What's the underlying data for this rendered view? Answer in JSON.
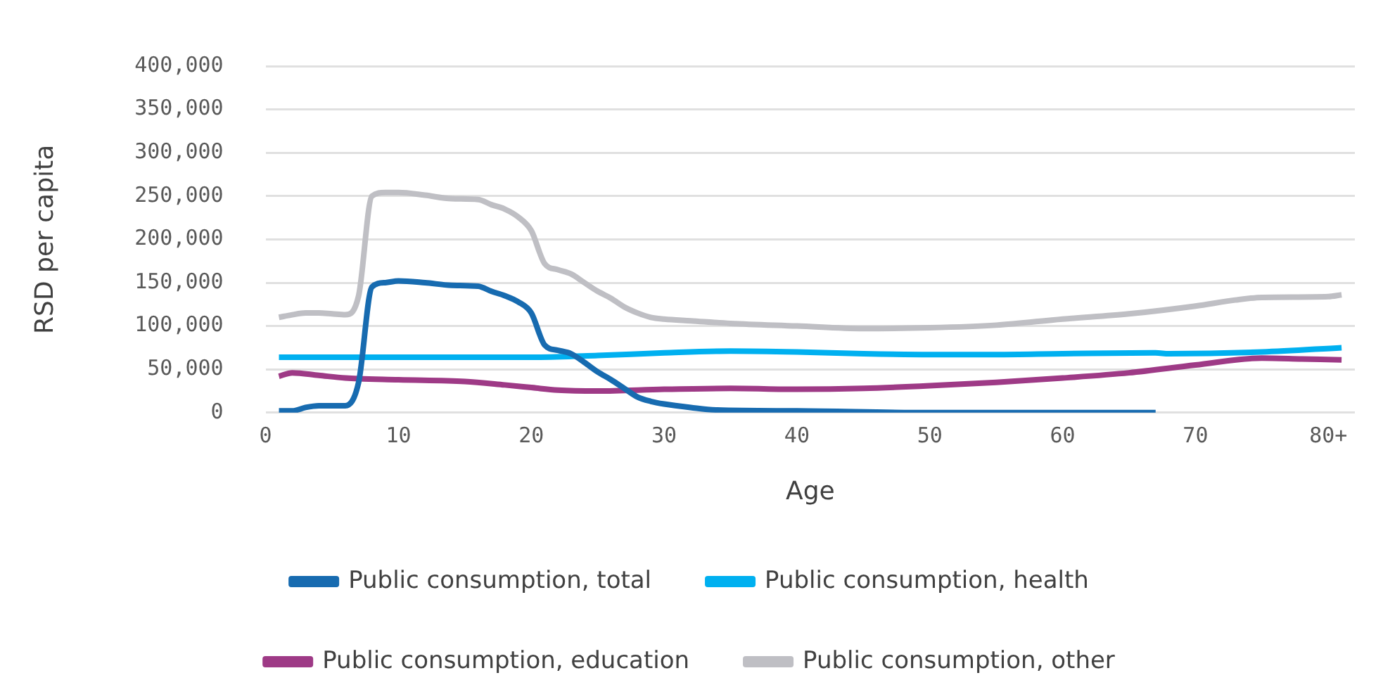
{
  "chart_data": {
    "type": "line",
    "xlabel": "Age",
    "ylabel": "RSD per capita",
    "xlim": [
      0,
      82
    ],
    "xticks": [
      0,
      10,
      20,
      30,
      40,
      50,
      60,
      70,
      {
        "value": 80,
        "label": "80+"
      }
    ],
    "ylim": [
      0,
      400000
    ],
    "yticks": [
      0,
      {
        "value": 50000,
        "label": "50,000"
      },
      {
        "value": 100000,
        "label": "100,000"
      },
      {
        "value": 150000,
        "label": "150,000"
      },
      {
        "value": 200000,
        "label": "200,000"
      },
      {
        "value": 250000,
        "label": "250,000"
      },
      {
        "value": 300000,
        "label": "300,000"
      },
      {
        "value": 350000,
        "label": "350,000"
      },
      {
        "value": 400000,
        "label": "400,000"
      }
    ],
    "grid": "y",
    "legend": "bottom",
    "marker": "none",
    "line_style": "solid",
    "series": [
      {
        "name": "Public consumption, total",
        "color": "#176bb0",
        "x": [
          1,
          2,
          3,
          4,
          5,
          6,
          7,
          8,
          9,
          10,
          12,
          14,
          16,
          17,
          18,
          19,
          20,
          21,
          22,
          23,
          24,
          25,
          26,
          27,
          28,
          29,
          30,
          32,
          34,
          40,
          50,
          60,
          67
        ],
        "values": [
          2000,
          2000,
          6000,
          8000,
          8000,
          8000,
          35000,
          145000,
          150000,
          152000,
          150000,
          147000,
          146000,
          140000,
          135000,
          128000,
          115000,
          78000,
          72000,
          68000,
          58000,
          47000,
          38000,
          28000,
          18000,
          13000,
          10000,
          6000,
          3000,
          2000,
          0,
          0,
          0
        ]
      },
      {
        "name": "Public consumption, health",
        "color": "#00b0f0",
        "x": [
          1,
          10,
          20,
          25,
          30,
          35,
          40,
          45,
          50,
          55,
          60,
          67,
          68,
          75,
          81
        ],
        "values": [
          64000,
          64000,
          64000,
          66000,
          69000,
          71000,
          70000,
          68000,
          67000,
          67000,
          68000,
          69000,
          68000,
          70000,
          75000
        ]
      },
      {
        "name": "Public consumption, education",
        "color": "#9e3a86",
        "x": [
          1,
          2,
          4,
          6,
          10,
          15,
          18,
          20,
          22,
          25,
          30,
          35,
          40,
          45,
          50,
          55,
          60,
          65,
          70,
          75,
          78,
          81
        ],
        "values": [
          42000,
          46000,
          43000,
          40000,
          38000,
          36000,
          32000,
          29000,
          26000,
          25000,
          27000,
          28000,
          27000,
          28000,
          31000,
          35000,
          40000,
          46000,
          55000,
          63000,
          62000,
          61000
        ]
      },
      {
        "name": "Public consumption, other",
        "color": "#bfbfc4",
        "x": [
          1,
          2,
          3,
          4,
          5,
          6,
          7,
          8,
          9,
          10,
          12,
          14,
          16,
          17,
          18,
          19,
          20,
          21,
          22,
          23,
          24,
          25,
          26,
          27,
          28,
          29,
          30,
          32,
          35,
          40,
          45,
          50,
          55,
          60,
          65,
          70,
          73,
          75,
          80,
          81
        ],
        "values": [
          110000,
          113000,
          115000,
          115000,
          114000,
          113000,
          135000,
          250000,
          254000,
          254000,
          251000,
          247000,
          246000,
          240000,
          235000,
          226000,
          210000,
          172000,
          165000,
          160000,
          150000,
          140000,
          132000,
          122000,
          115000,
          110000,
          108000,
          106000,
          103000,
          100000,
          97000,
          98000,
          101000,
          108000,
          114000,
          123000,
          130000,
          133000,
          134000,
          136000
        ]
      }
    ]
  }
}
